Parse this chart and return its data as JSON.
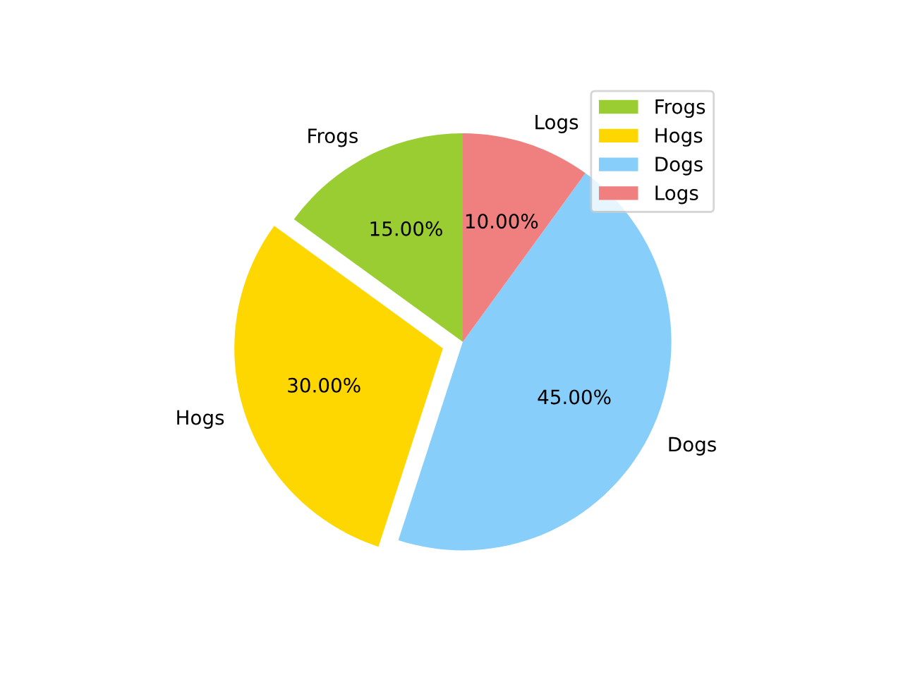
{
  "chart_data": {
    "type": "pie",
    "categories": [
      "Frogs",
      "Hogs",
      "Dogs",
      "Logs"
    ],
    "values": [
      15,
      30,
      45,
      10
    ],
    "colors": [
      "#9acd32",
      "#ffd700",
      "#87cefa",
      "#f08080"
    ],
    "value_labels": [
      "15.00%",
      "30.00%",
      "45.00%",
      "10.00%"
    ],
    "legend": "top right"
  }
}
